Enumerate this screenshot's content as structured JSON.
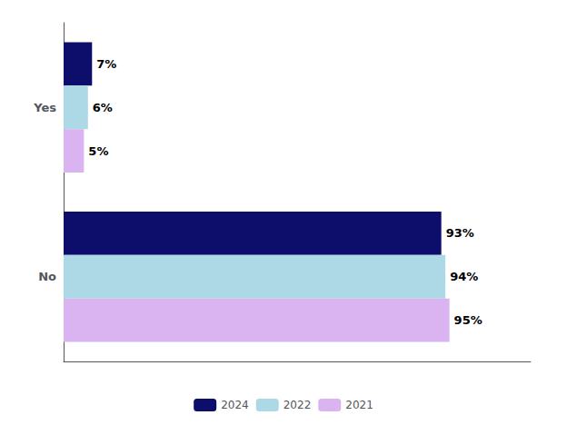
{
  "chart_data": {
    "type": "bar",
    "orientation": "horizontal",
    "categories": [
      "Yes",
      "No"
    ],
    "series": [
      {
        "name": "2024",
        "color": "#0d0d6b",
        "values": [
          7,
          93
        ],
        "value_labels": [
          "7%",
          "93%"
        ]
      },
      {
        "name": "2022",
        "color": "#add8e6",
        "values": [
          6,
          94
        ],
        "value_labels": [
          "6%",
          "94%"
        ]
      },
      {
        "name": "2021",
        "color": "#dab4f0",
        "values": [
          5,
          95
        ],
        "value_labels": [
          "5%",
          "95%"
        ]
      }
    ],
    "xlim": [
      0,
      115
    ],
    "data_labels": true,
    "tick_labels": "y",
    "grid": false,
    "legend": "bottom"
  }
}
